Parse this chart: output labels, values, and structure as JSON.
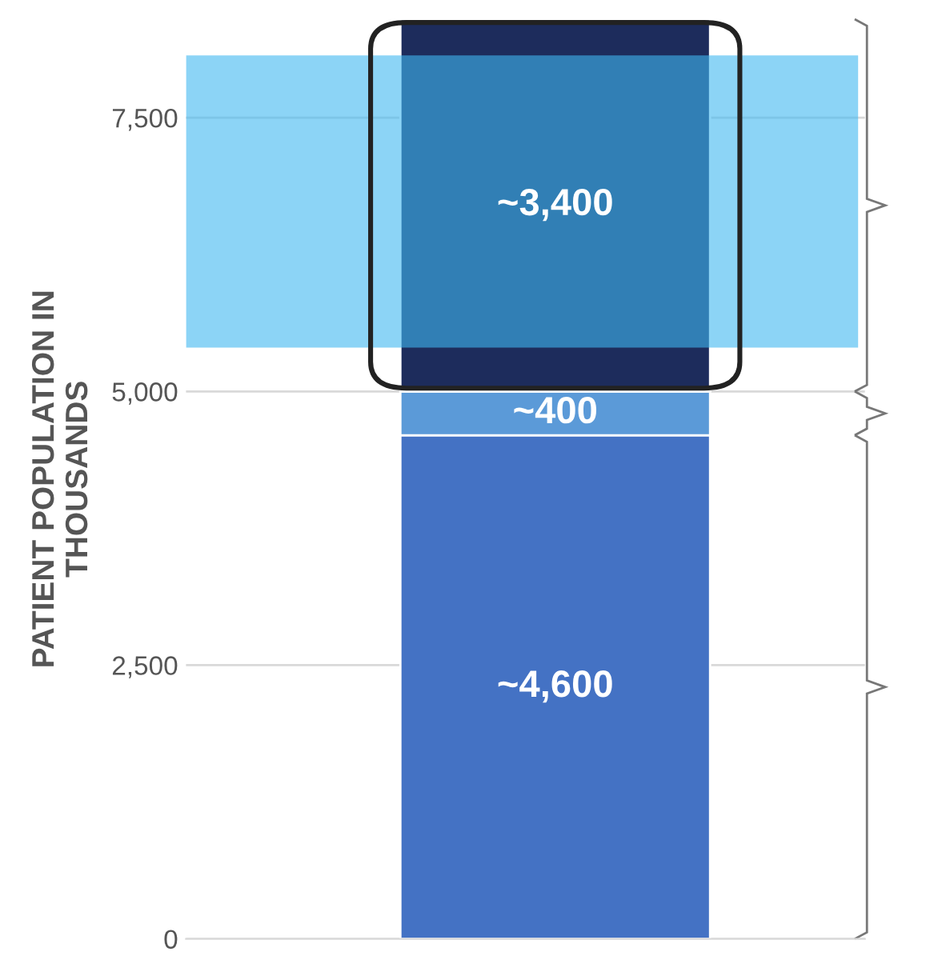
{
  "chart_data": {
    "type": "bar",
    "stacked": true,
    "ylabel": "PATIENT POPULATION IN\nTHOUSANDS",
    "categories": [
      null
    ],
    "series": [
      {
        "color": "#4472c4",
        "values": [
          4600
        ],
        "value_labels": [
          "~4,600"
        ]
      },
      {
        "color": "#5b9ad8",
        "values": [
          400
        ],
        "value_labels": [
          "~400"
        ]
      },
      {
        "color": "#1d2c5c",
        "values": [
          3400
        ],
        "value_labels": [
          "~3,400"
        ]
      }
    ],
    "ylim": [
      0,
      8400
    ],
    "yticks": [
      {
        "value": 0,
        "label": "0"
      },
      {
        "value": 2500,
        "label": "2,500"
      },
      {
        "value": 5000,
        "label": "5,000"
      },
      {
        "value": 7500,
        "label": "7,500"
      }
    ],
    "bands": [
      {
        "axis": "y",
        "from": 5400,
        "to": 8070,
        "color": "#40b8f0"
      }
    ],
    "grid": "y",
    "tick_labels": "y"
  }
}
